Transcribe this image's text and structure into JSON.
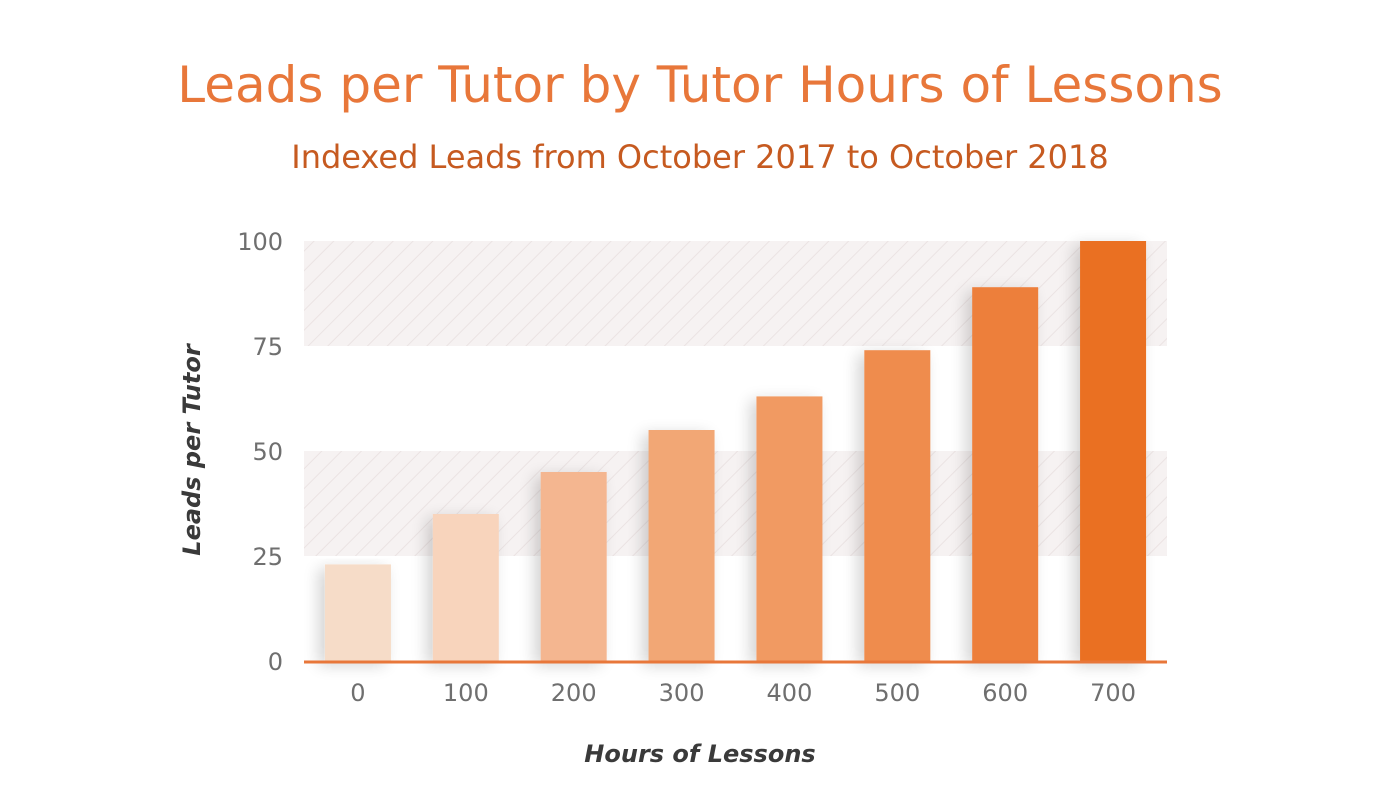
{
  "chart_data": {
    "type": "bar",
    "title": "Leads per Tutor by Tutor Hours of Lessons",
    "subtitle": "Indexed Leads from October 2017 to October 2018",
    "xlabel": "Hours of Lessons",
    "ylabel": "Leads per Tutor",
    "categories": [
      "0",
      "100",
      "200",
      "300",
      "400",
      "500",
      "600",
      "700"
    ],
    "values": [
      23,
      35,
      45,
      55,
      63,
      74,
      89,
      100
    ],
    "ylim": [
      0,
      100
    ],
    "yticks": [
      "0",
      "25",
      "50",
      "75",
      "100"
    ],
    "grid": "hatched bands between 25–50 and 75–100",
    "bar_colors": [
      "#f6dcc8",
      "#f8d4bc",
      "#f4b690",
      "#f2a774",
      "#f19a62",
      "#ef8c4e",
      "#ed7f3a",
      "#ea6f22"
    ],
    "axis_color": "#e8773a",
    "band_color": "#f5f0f0"
  }
}
